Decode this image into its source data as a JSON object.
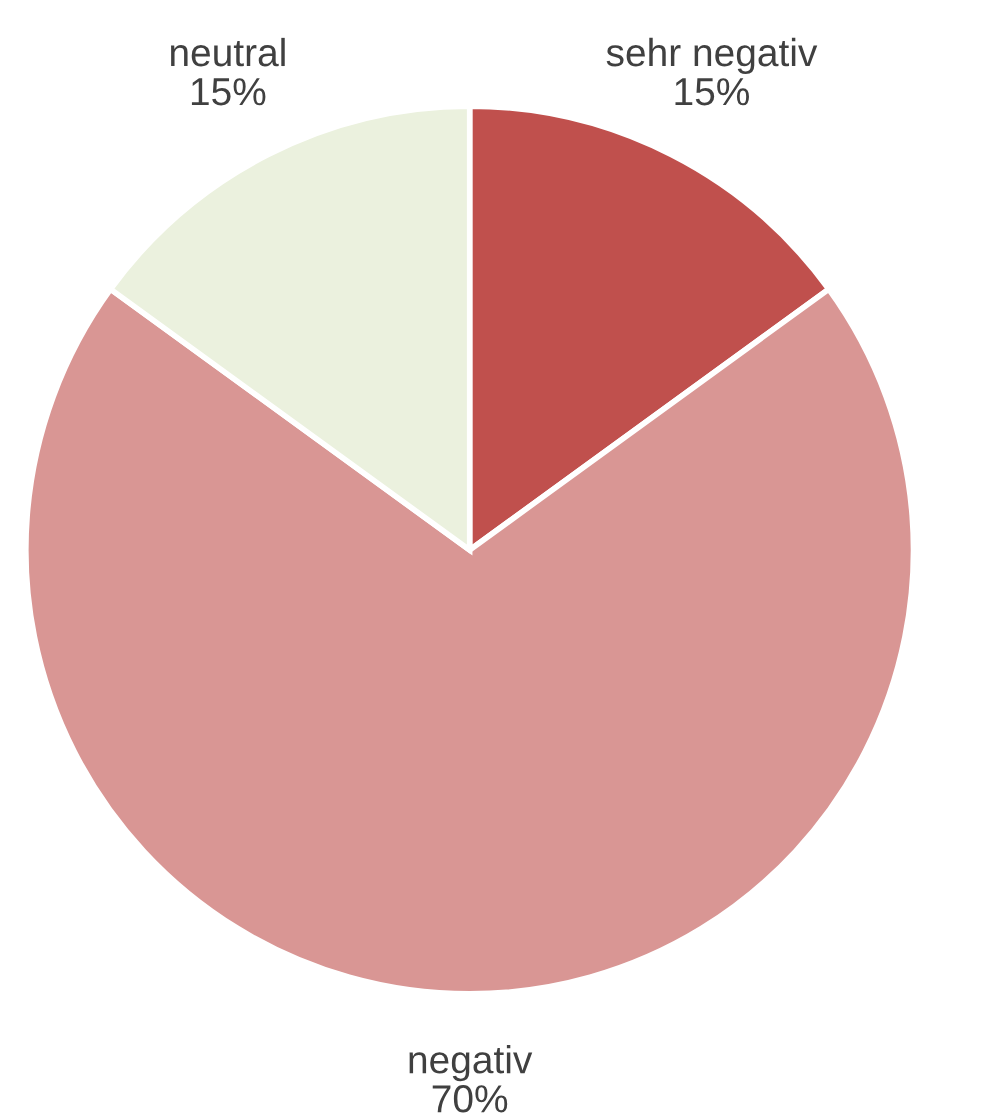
{
  "chart_data": {
    "type": "pie",
    "categories": [
      "sehr negativ",
      "negativ",
      "neutral"
    ],
    "values": [
      15,
      70,
      15
    ],
    "colors": [
      "#c0504d",
      "#d99694",
      "#ebf1de"
    ],
    "value_labels": [
      "15%",
      "70%",
      "15%"
    ]
  }
}
